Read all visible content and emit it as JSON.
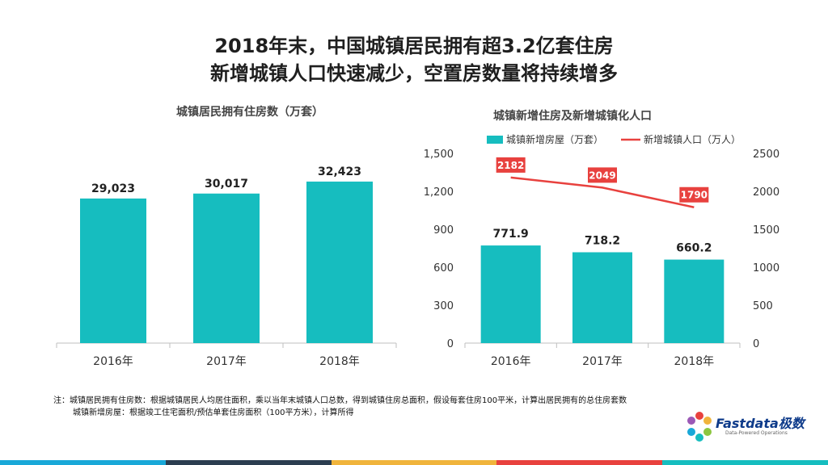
{
  "title": {
    "line1": "2018年末，中国城镇居民拥有超3.2亿套住房",
    "line2": "新增城镇人口快速减少，空置房数量将持续增多"
  },
  "chart_data": [
    {
      "type": "bar",
      "title": "城镇居民拥有住房数（万套）",
      "categories": [
        "2016年",
        "2017年",
        "2018年"
      ],
      "values": [
        29023,
        30017,
        32423
      ],
      "value_labels": [
        "29,023",
        "30,017",
        "32,423"
      ],
      "bar_color": "#16bdbf",
      "grid": false
    },
    {
      "type": "bar",
      "title": "城镇新增住房及新增城镇化人口",
      "categories": [
        "2016年",
        "2017年",
        "2018年"
      ],
      "ylim_left": [
        0,
        1500
      ],
      "yticks_left": [
        "0",
        "300",
        "600",
        "900",
        "1,200",
        "1,500"
      ],
      "ylim_right": [
        0,
        2500
      ],
      "yticks_right": [
        "0",
        "500",
        "1000",
        "1500",
        "2000",
        "2500"
      ],
      "legend_position": "top",
      "grid": false,
      "series": [
        {
          "name": "城镇新增房屋（万套）",
          "type": "bar",
          "axis": "left",
          "values": [
            771.9,
            718.2,
            660.2
          ],
          "labels": [
            "771.9",
            "718.2",
            "660.2"
          ],
          "color": "#16bdbf"
        },
        {
          "name": "新增城镇人口（万人）",
          "type": "line",
          "axis": "right",
          "values": [
            2182,
            2049,
            1790
          ],
          "labels": [
            "2182",
            "2049",
            "1790"
          ],
          "color": "#e8413e"
        }
      ]
    }
  ],
  "notes": {
    "line1": "注：城镇居民拥有住房数：根据城镇居民人均居住面积，乘以当年末城镇人口总数，得到城镇住房总面积，假设每套住房100平米，计算出居民拥有的总住房套数",
    "line2": "城镇新增房屋：根据竣工住宅面积/预估单套住房面积（100平方米），计算所得"
  },
  "logo": {
    "name": "Fastdata极数",
    "tagline": "Data-Powered Operations"
  },
  "footer_colors": [
    "#19a8d8",
    "#2c3e50",
    "#f0b43c",
    "#e8413e",
    "#16bdbf"
  ]
}
